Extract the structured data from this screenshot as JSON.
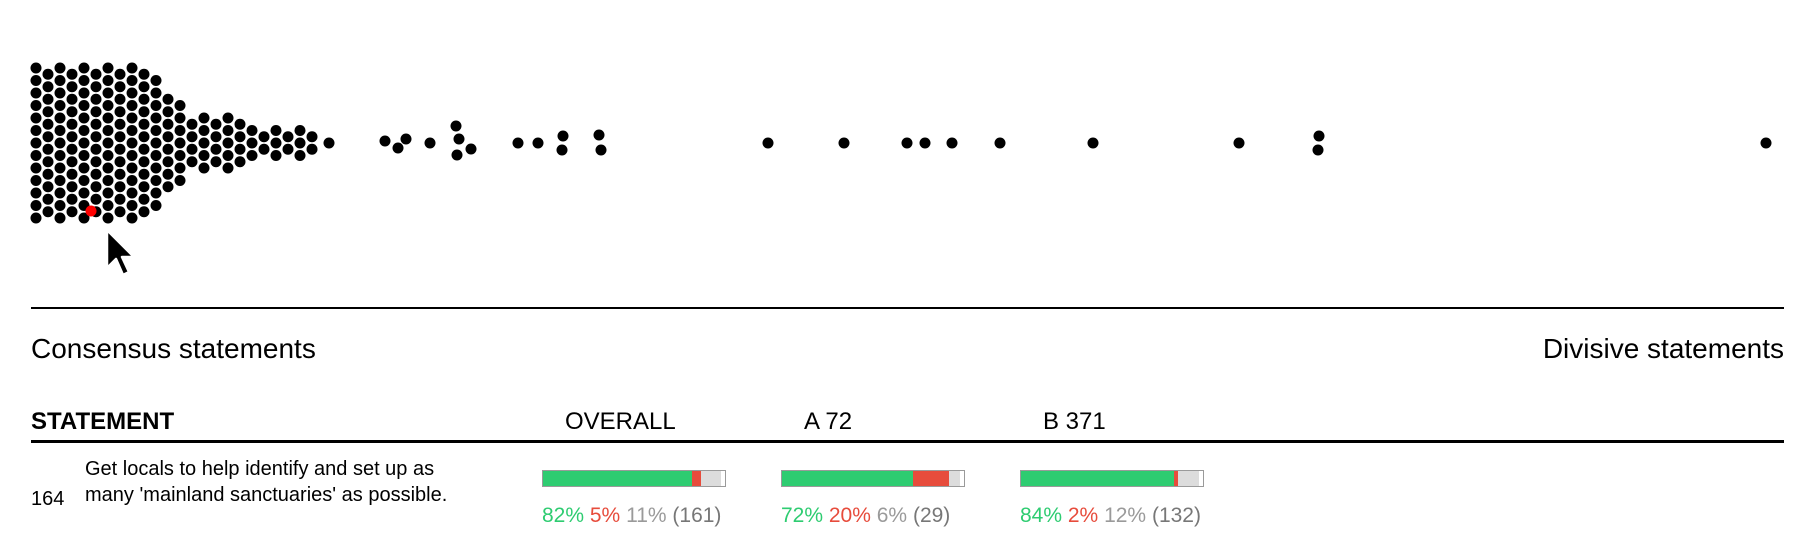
{
  "axis": {
    "left_label": "Consensus statements",
    "right_label": "Divisive statements"
  },
  "table": {
    "headers": {
      "statement": "STATEMENT",
      "overall": "OVERALL",
      "group_a": "A 72",
      "group_b": "B 371"
    },
    "rows": [
      {
        "id": "164",
        "text": "Get locals to help identify and set up as many 'mainland sanctuaries' as possible.",
        "overall": {
          "agree": 82,
          "disagree": 5,
          "pass": 11,
          "agree_label": "82%",
          "disagree_label": "5%",
          "pass_label": "11%",
          "count_label": "(161)"
        },
        "group_a": {
          "agree": 72,
          "disagree": 20,
          "pass": 6,
          "agree_label": "72%",
          "disagree_label": "20%",
          "pass_label": "6%",
          "count_label": "(29)"
        },
        "group_b": {
          "agree": 84,
          "disagree": 2,
          "pass": 12,
          "agree_label": "84%",
          "disagree_label": "2%",
          "pass_label": "12%",
          "count_label": "(132)"
        }
      }
    ]
  },
  "colors": {
    "agree": "#2ecc71",
    "disagree": "#e74c3c",
    "pass": "#dcdcdc",
    "dot": "#000000",
    "selected_dot": "#ff0000"
  },
  "icons": {
    "cursor": "mouse-pointer-icon"
  }
}
